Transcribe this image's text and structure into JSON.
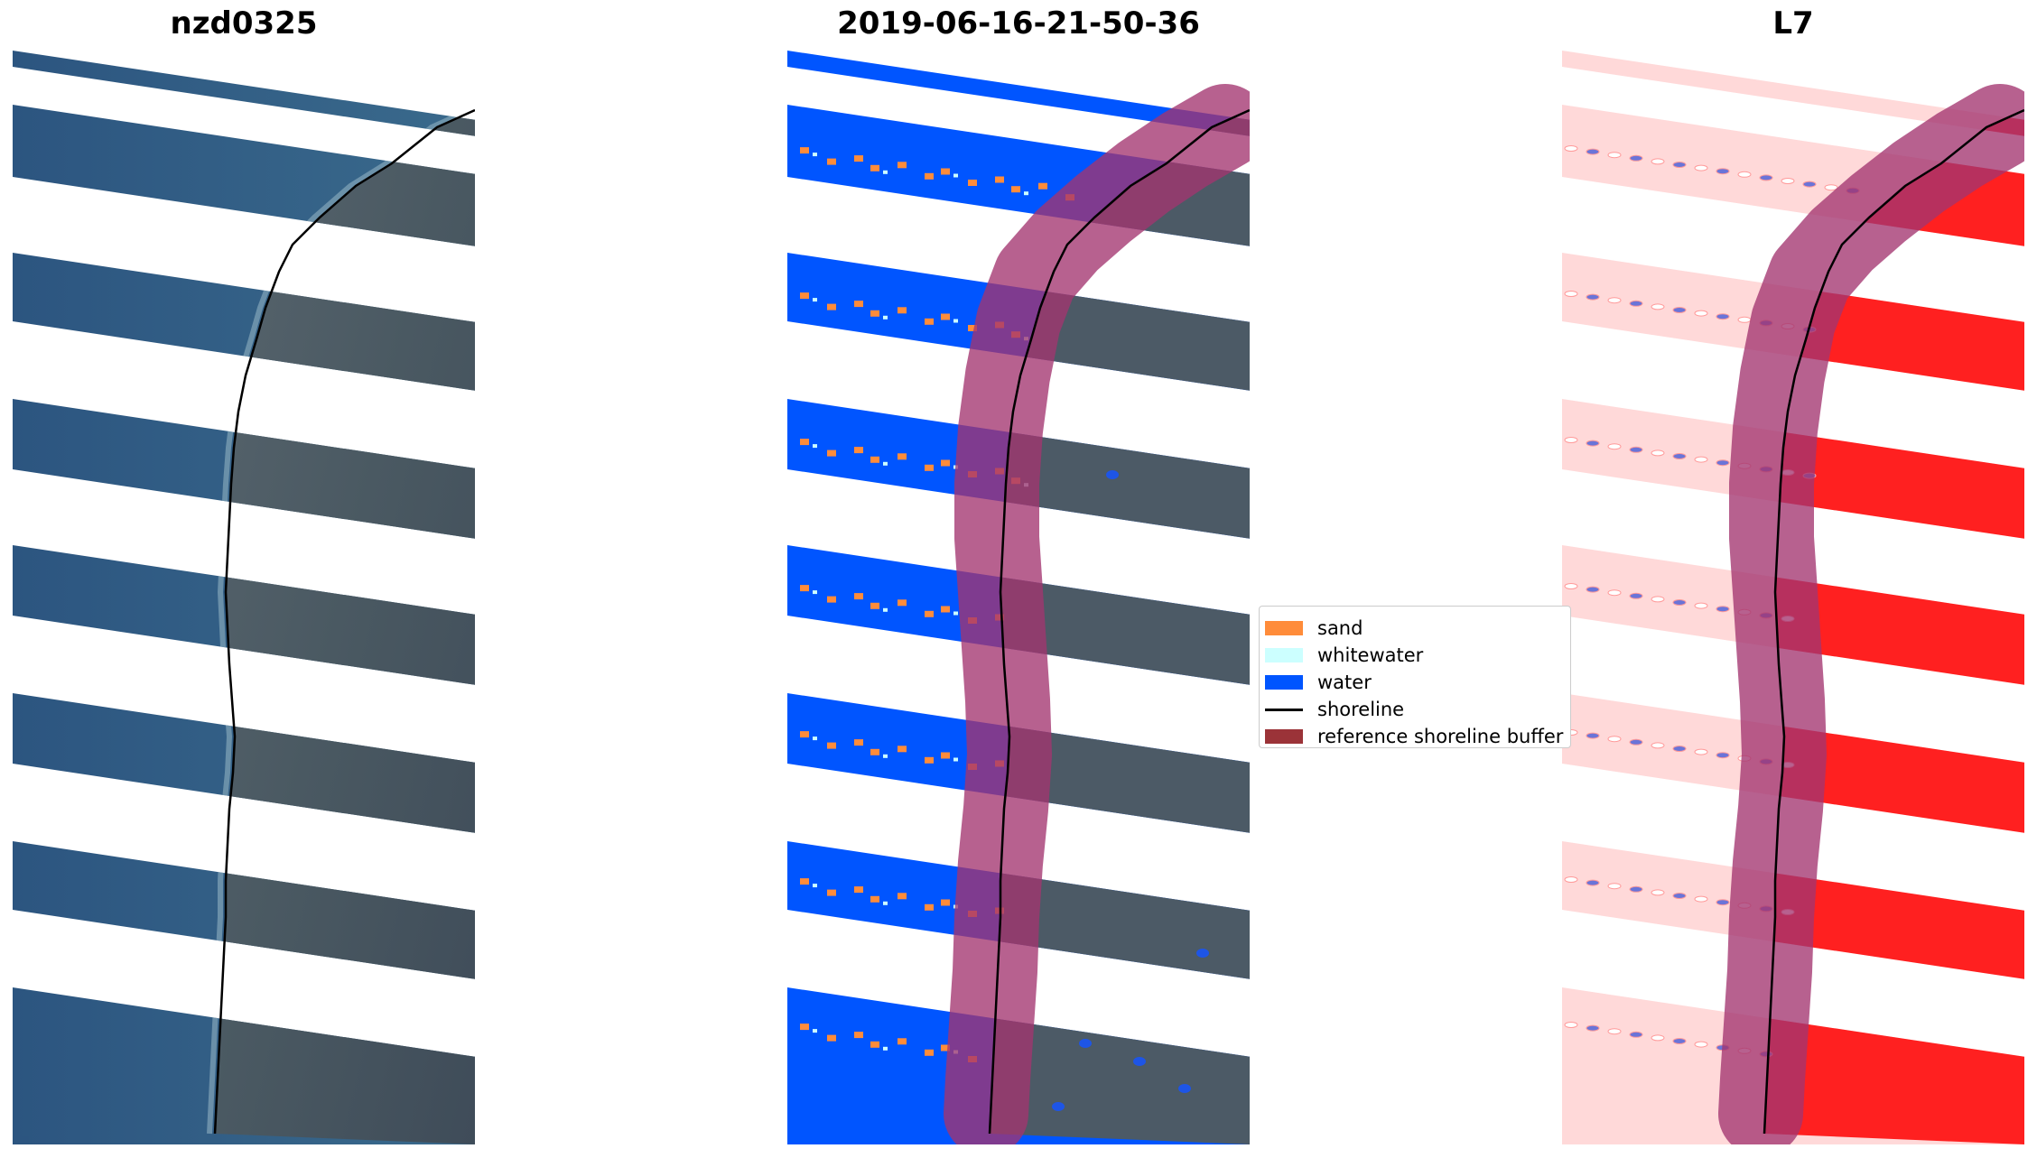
{
  "panels": [
    {
      "title": "nzd0325",
      "kind": "rgb"
    },
    {
      "title": "2019-06-16-21-50-36",
      "kind": "classified"
    },
    {
      "title": "L7",
      "kind": "index"
    }
  ],
  "legend": {
    "items": [
      {
        "label": "sand",
        "color": "#ff8c3a"
      },
      {
        "label": "whitewater",
        "color": "#ccffff"
      },
      {
        "label": "water",
        "color": "#0055ff"
      },
      {
        "label": "shoreline",
        "color": "#000000"
      },
      {
        "label": "reference shoreline buffer",
        "color": "#9b3338"
      }
    ]
  },
  "colors": {
    "water_rgb": "#2f5d85",
    "land_rgb": "#4f5d68",
    "water_class": "#0055ff",
    "buffer": "#a3346f",
    "index_low": "#ffd6d6",
    "index_high": "#ff1a1a"
  }
}
